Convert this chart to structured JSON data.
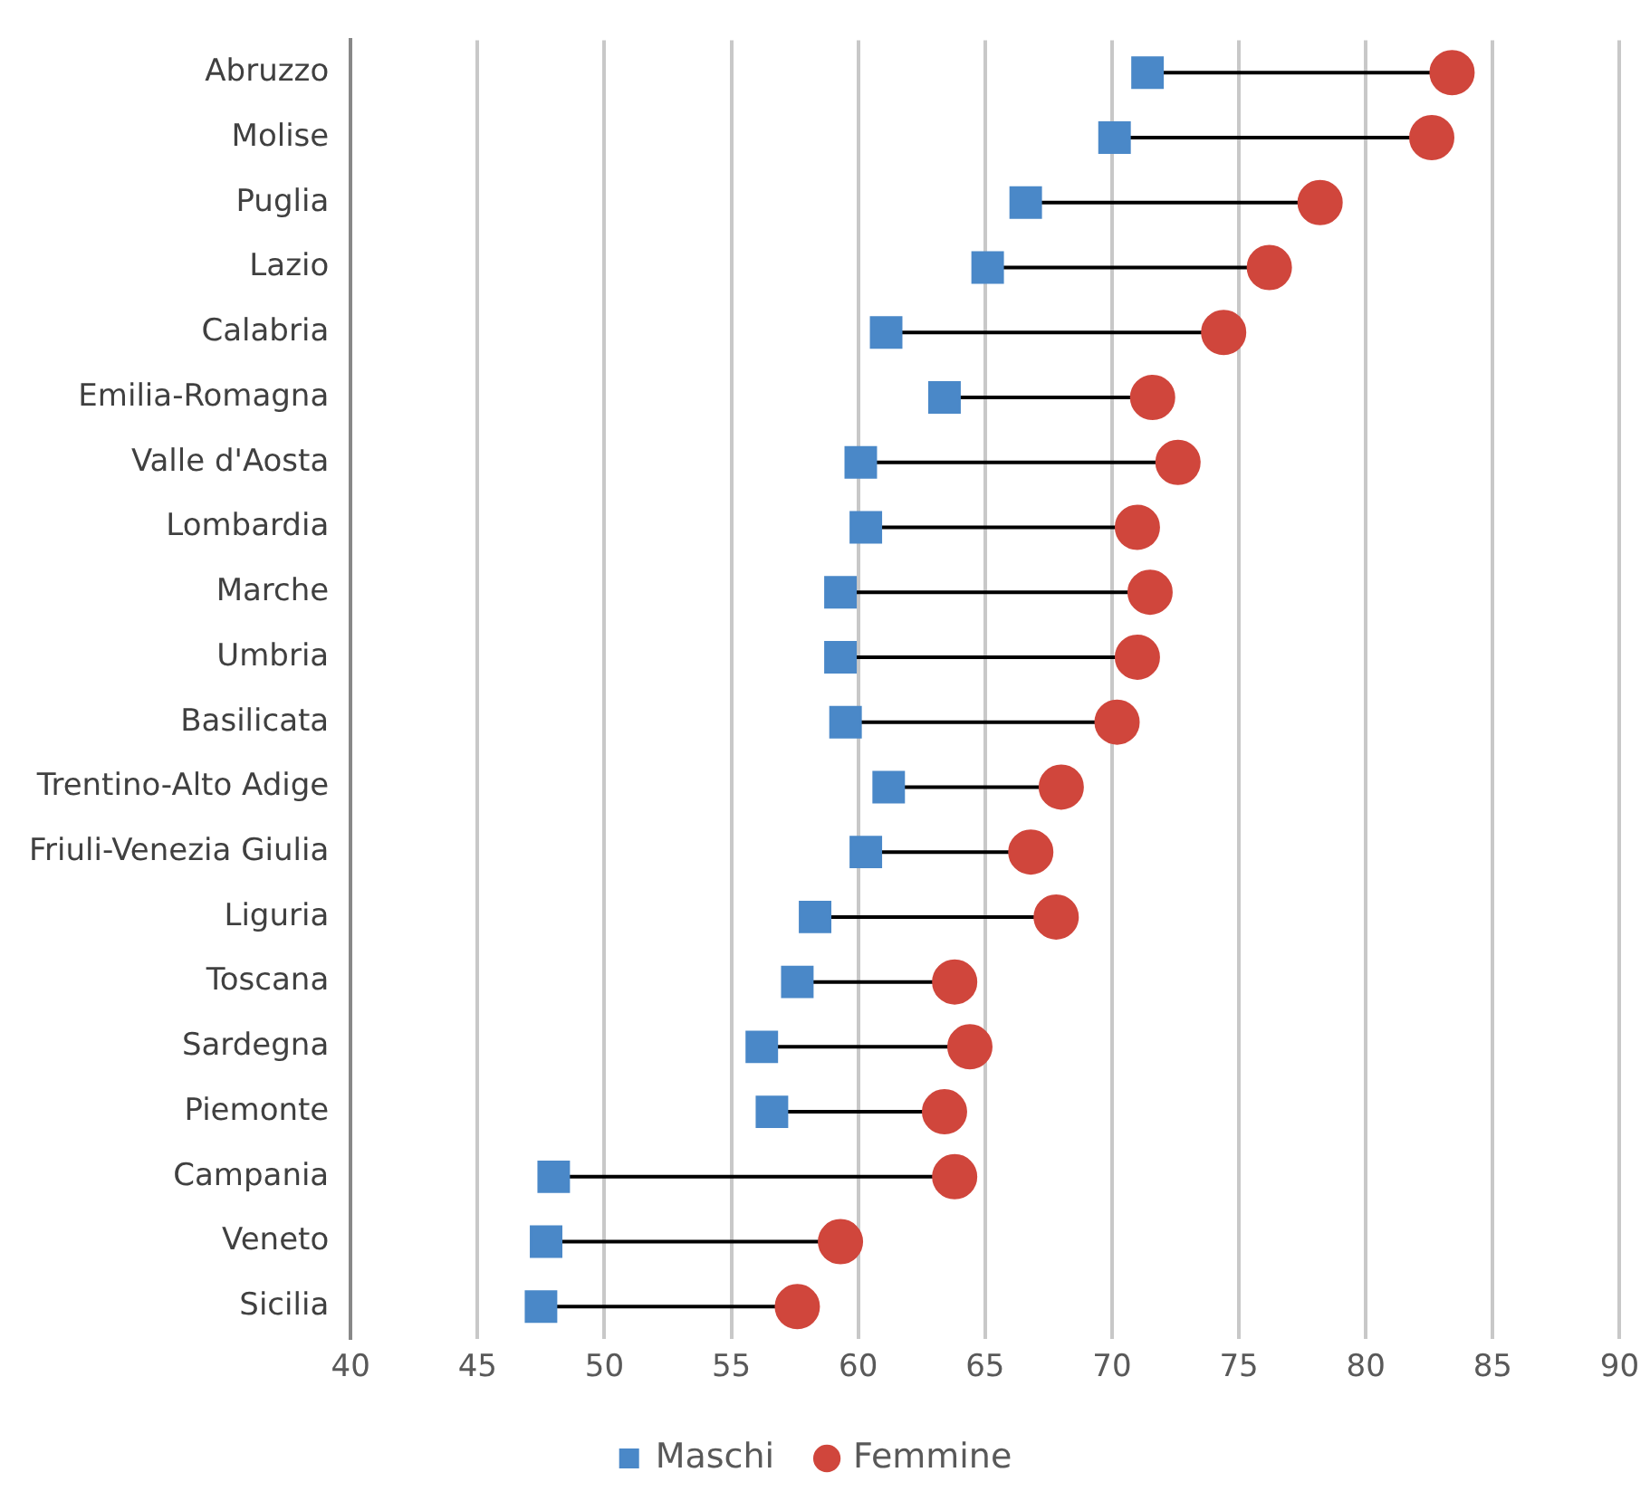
{
  "chart_data": {
    "type": "scatter",
    "orientation": "horizontal",
    "categories": [
      "Abruzzo",
      "Molise",
      "Puglia",
      "Lazio",
      "Calabria",
      "Emilia-Romagna",
      "Valle d'Aosta",
      "Lombardia",
      "Marche",
      "Umbria",
      "Basilicata",
      "Trentino-Alto Adige",
      "Friuli-Venezia Giulia",
      "Liguria",
      "Toscana",
      "Sardegna",
      "Piemonte",
      "Campania",
      "Veneto",
      "Sicilia"
    ],
    "series": [
      {
        "name": "Maschi",
        "color": "#4a88c8",
        "marker": "square",
        "values": [
          71.4,
          70.1,
          66.6,
          65.1,
          61.1,
          63.4,
          60.1,
          60.3,
          59.3,
          59.3,
          59.5,
          61.2,
          60.3,
          58.3,
          57.6,
          56.2,
          56.6,
          48.0,
          47.7,
          47.5
        ]
      },
      {
        "name": "Femmine",
        "color": "#d0463c",
        "marker": "circle",
        "values": [
          83.4,
          82.6,
          78.2,
          76.2,
          74.4,
          71.6,
          72.6,
          71.0,
          71.5,
          71.0,
          70.2,
          68.0,
          66.8,
          67.8,
          63.8,
          64.4,
          63.4,
          63.8,
          59.3,
          57.6
        ]
      }
    ],
    "xlim": [
      40,
      90
    ],
    "xticks": [
      40,
      45,
      50,
      55,
      60,
      65,
      70,
      75,
      80,
      85,
      90
    ],
    "grid": "x",
    "legend": "bottom"
  }
}
